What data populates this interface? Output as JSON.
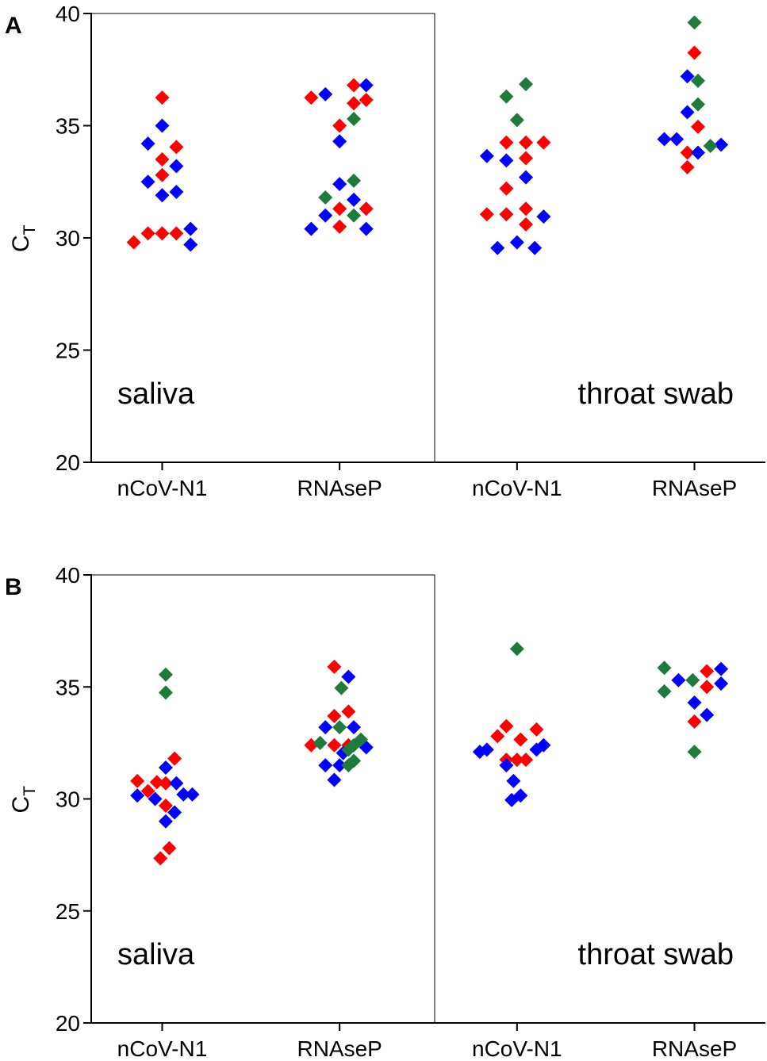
{
  "chart_data": [
    {
      "type": "scatter",
      "panel": "A",
      "ylabel": "C",
      "ylabel_sub": "T",
      "annotations": [
        "saliva",
        "throat swab"
      ],
      "xlim": [
        0.6,
        4.4
      ],
      "xticks": [
        {
          "value": 1,
          "label": "nCoV-N1"
        },
        {
          "value": 2,
          "label": "RNAseP"
        },
        {
          "value": 3,
          "label": "nCoV-N1"
        },
        {
          "value": 4,
          "label": "RNAseP"
        }
      ],
      "ylim": [
        20,
        40
      ],
      "yticks": [
        20,
        25,
        30,
        35,
        40
      ],
      "series": [
        {
          "color": "#ff0000",
          "x": [
            1.0,
            1.08,
            1.0,
            1.0,
            0.84,
            0.92,
            1.0,
            1.08,
            1.84,
            2.08,
            2.0,
            2.08,
            2.15,
            2.0,
            2.15,
            2.0,
            2.94,
            3.05,
            3.15,
            2.94,
            3.05,
            2.83,
            2.94,
            3.05,
            3.05,
            4.0,
            4.02,
            3.96,
            3.96
          ],
          "values": [
            36.25,
            34.05,
            33.5,
            32.8,
            29.8,
            30.2,
            30.2,
            30.2,
            36.25,
            36.8,
            35.0,
            36.0,
            36.15,
            31.3,
            31.3,
            30.5,
            34.25,
            34.25,
            34.25,
            32.2,
            33.55,
            31.05,
            31.05,
            31.3,
            30.6,
            38.25,
            34.95,
            33.8,
            33.15
          ]
        },
        {
          "color": "#0000ff",
          "x": [
            1.0,
            0.92,
            0.92,
            1.08,
            1.0,
            1.08,
            1.16,
            1.16,
            1.92,
            2.15,
            2.0,
            2.0,
            2.08,
            1.92,
            1.84,
            2.15,
            2.83,
            2.94,
            3.05,
            3.15,
            2.89,
            3.0,
            3.1,
            3.96,
            3.96,
            3.83,
            3.9,
            4.02,
            4.15
          ],
          "values": [
            35.0,
            34.2,
            32.5,
            33.2,
            31.9,
            32.05,
            30.4,
            29.7,
            36.4,
            36.8,
            34.3,
            32.4,
            31.7,
            31.0,
            30.4,
            30.4,
            33.65,
            33.45,
            32.7,
            30.95,
            29.55,
            29.8,
            29.55,
            37.2,
            35.6,
            34.4,
            34.4,
            33.8,
            34.15
          ]
        },
        {
          "color": "#1e7b3c",
          "x": [
            2.08,
            1.92,
            2.08,
            2.08,
            2.94,
            3.05,
            3.0,
            4.0,
            4.02,
            4.02,
            4.09
          ],
          "values": [
            35.3,
            31.8,
            32.55,
            31.0,
            36.3,
            36.85,
            35.25,
            39.6,
            37.0,
            35.95,
            34.1
          ]
        }
      ]
    },
    {
      "type": "scatter",
      "panel": "B",
      "ylabel": "C",
      "ylabel_sub": "T",
      "annotations": [
        "saliva",
        "throat swab"
      ],
      "xlim": [
        0.6,
        4.4
      ],
      "xticks": [
        {
          "value": 1,
          "label": "nCoV-N1"
        },
        {
          "value": 2,
          "label": "RNAseP"
        },
        {
          "value": 3,
          "label": "nCoV-N1"
        },
        {
          "value": 4,
          "label": "RNAseP"
        }
      ],
      "ylim": [
        20,
        40
      ],
      "yticks": [
        20,
        25,
        30,
        35,
        40
      ],
      "series": [
        {
          "color": "#ff0000",
          "x": [
            0.86,
            0.92,
            0.97,
            1.07,
            1.02,
            1.02,
            1.04,
            0.99,
            1.97,
            1.97,
            2.05,
            1.84,
            1.97,
            2.05,
            2.94,
            3.11,
            3.02,
            2.89,
            2.94,
            3.0,
            3.05,
            4.07,
            4.07,
            4.0
          ],
          "values": [
            30.8,
            30.35,
            30.75,
            31.8,
            30.7,
            29.7,
            27.8,
            27.35,
            35.9,
            33.7,
            33.9,
            32.4,
            32.4,
            32.4,
            33.25,
            33.1,
            32.65,
            32.8,
            31.75,
            31.75,
            31.75,
            35.7,
            35.0,
            33.45
          ]
        },
        {
          "color": "#0000ff",
          "x": [
            0.86,
            0.96,
            1.02,
            1.08,
            1.12,
            1.17,
            1.07,
            1.02,
            2.05,
            1.92,
            2.08,
            2.15,
            2.0,
            1.92,
            1.97,
            2.02,
            2.79,
            2.83,
            2.94,
            3.11,
            3.15,
            2.98,
            2.97,
            3.02,
            3.91,
            4.15,
            4.15,
            4.0,
            4.07
          ],
          "values": [
            30.15,
            30.0,
            31.4,
            30.7,
            30.2,
            30.2,
            29.4,
            29.0,
            35.45,
            33.2,
            33.2,
            32.3,
            31.5,
            31.5,
            30.85,
            32.05,
            32.1,
            32.2,
            31.5,
            32.2,
            32.4,
            30.8,
            29.95,
            30.15,
            35.3,
            35.8,
            35.15,
            34.3,
            33.75
          ]
        },
        {
          "color": "#1e7b3c",
          "x": [
            1.02,
            1.02,
            2.01,
            1.89,
            2.0,
            2.08,
            2.12,
            2.05,
            2.08,
            2.05,
            3.0,
            3.83,
            3.99,
            3.83,
            4.0
          ],
          "values": [
            35.55,
            34.75,
            34.95,
            32.5,
            33.2,
            32.4,
            32.65,
            31.5,
            31.7,
            32.2,
            36.7,
            35.85,
            35.3,
            34.8,
            32.1
          ]
        }
      ]
    }
  ]
}
